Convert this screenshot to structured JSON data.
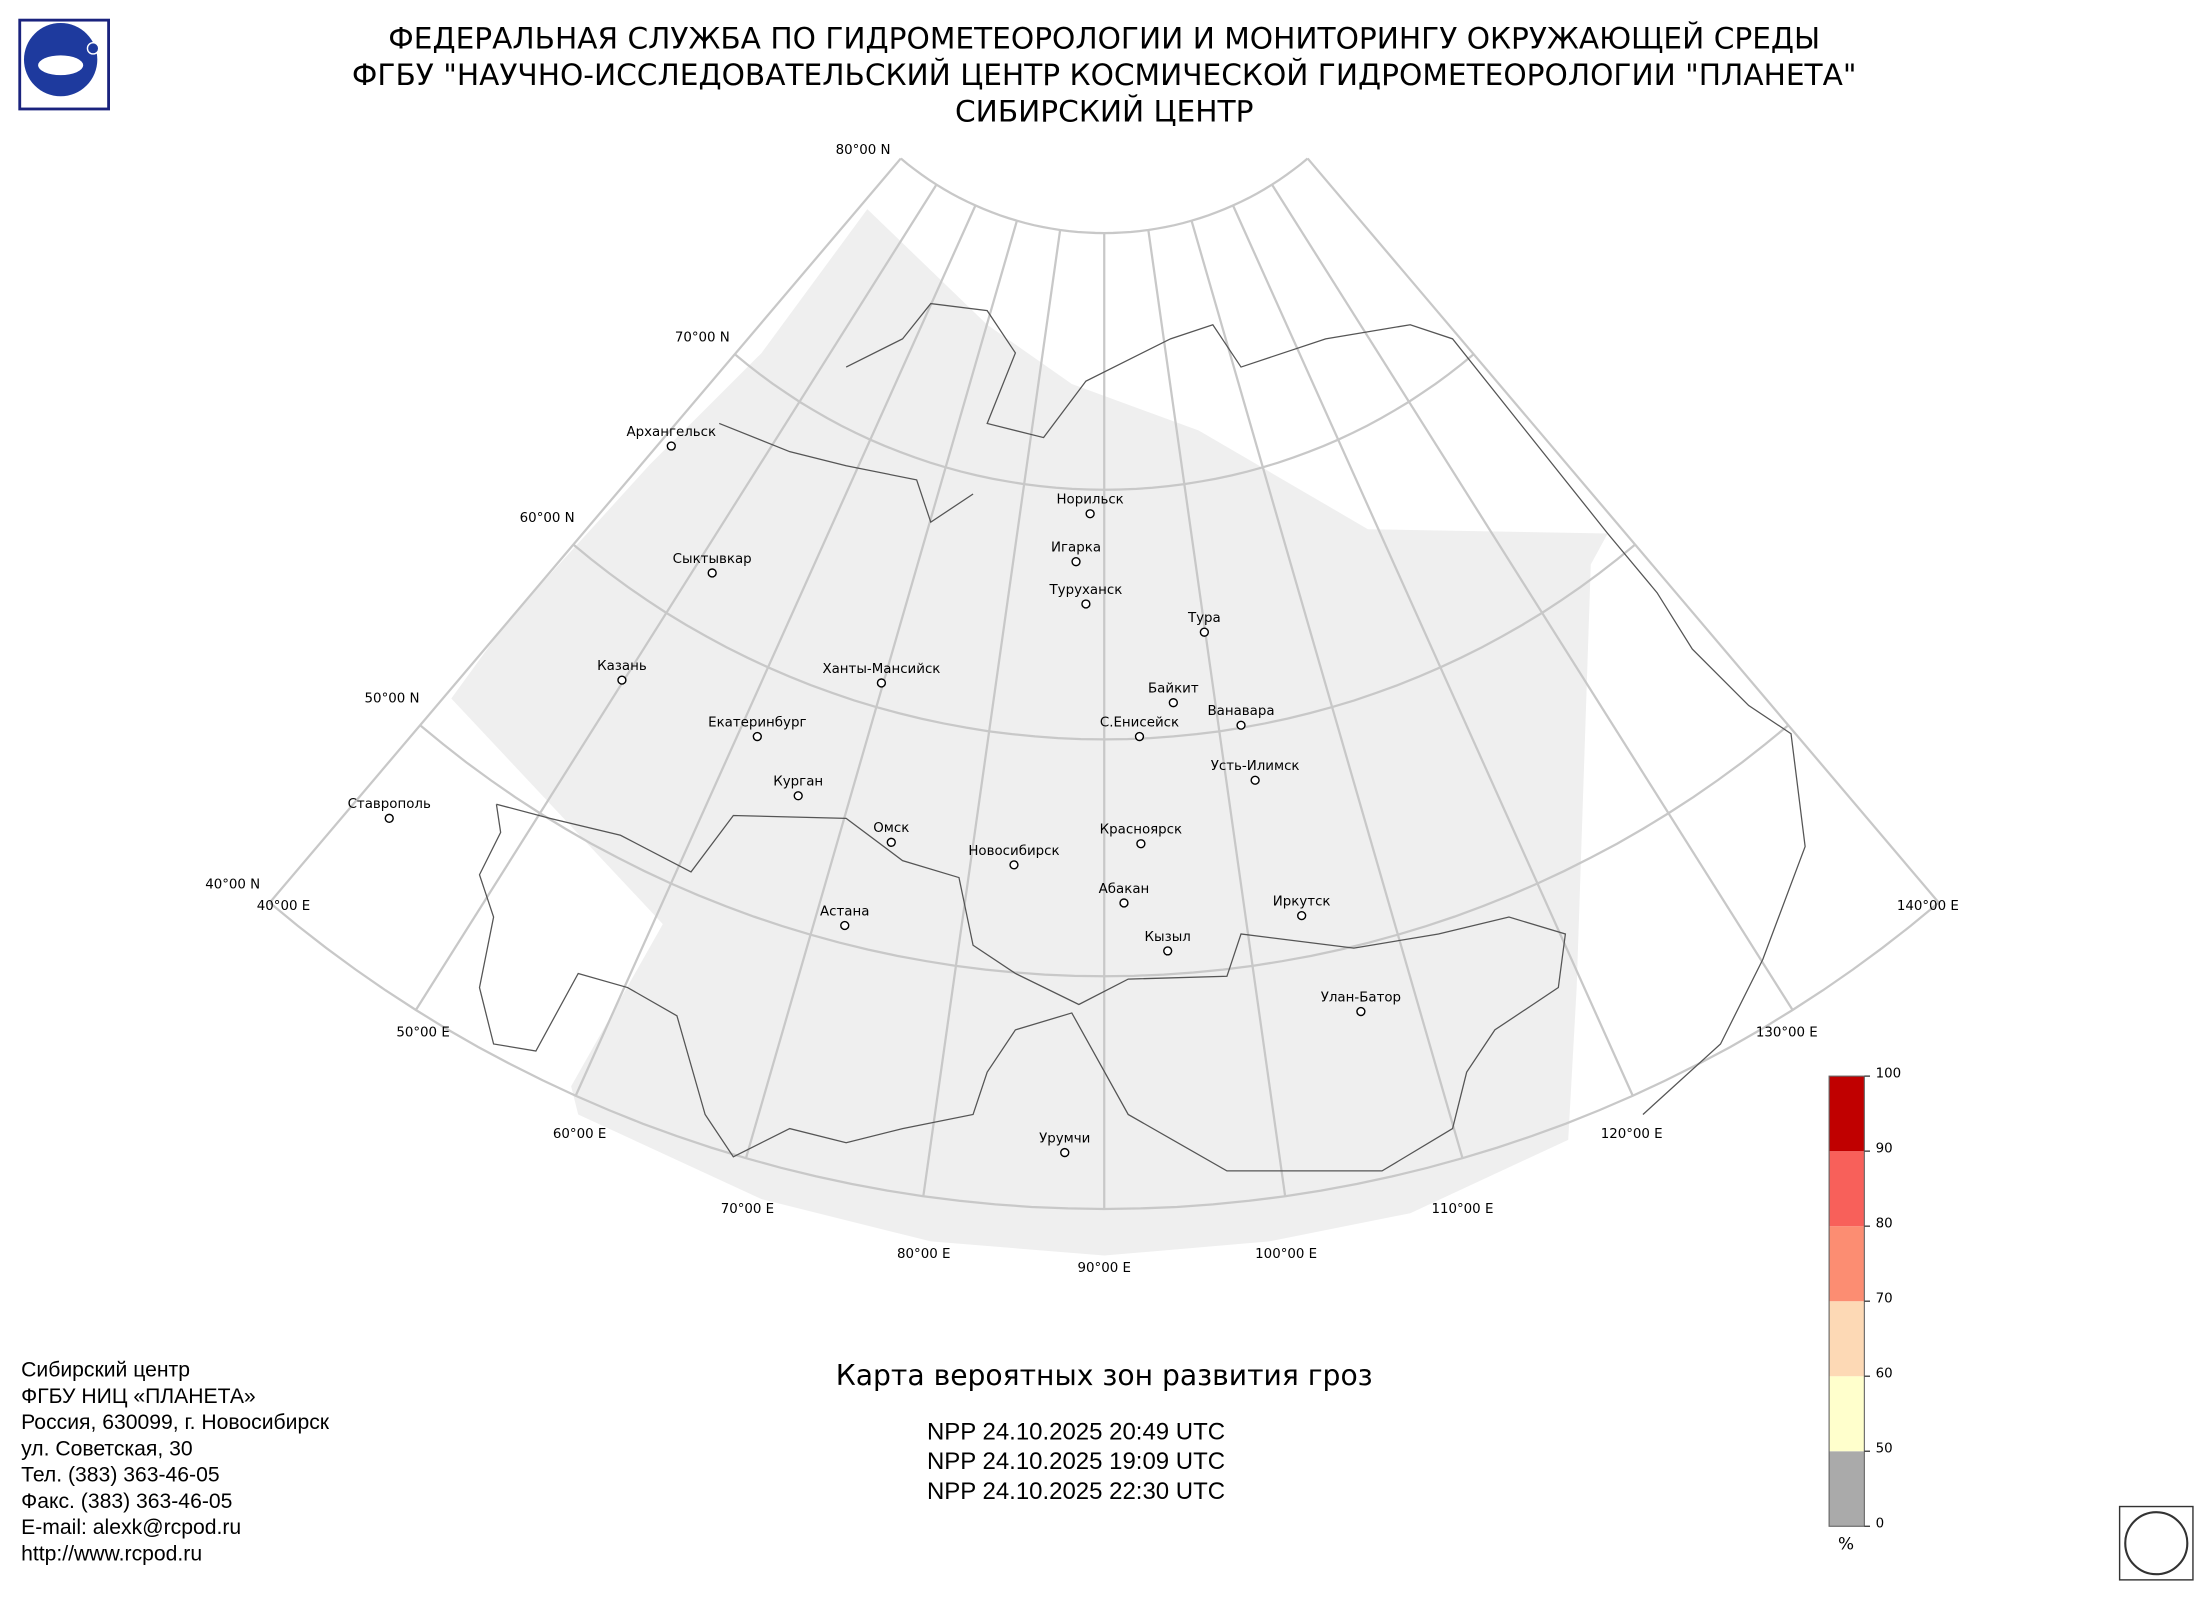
{
  "header": {
    "lines": [
      "ФЕДЕРАЛЬНАЯ СЛУЖБА ПО ГИДРОМЕТЕОРОЛОГИИ И МОНИТОРИНГУ ОКРУЖАЮЩЕЙ СРЕДЫ",
      "ФГБУ \"НАУЧНО-ИССЛЕДОВАТЕЛЬСКИЙ ЦЕНТР КОСМИЧЕСКОЙ ГИДРОМЕТЕОРОЛОГИИ \"ПЛАНЕТА\"",
      "СИБИРСКИЙ ЦЕНТР"
    ]
  },
  "map": {
    "lat_labels": [
      "80°00 N",
      "70°00 N",
      "60°00 N",
      "50°00 N",
      "40°00 N"
    ],
    "lon_labels": [
      "40°00 E",
      "50°00 E",
      "60°00 E",
      "70°00 E",
      "80°00 E",
      "90°00 E",
      "100°00 E",
      "110°00 E",
      "120°00 E",
      "130°00 E",
      "140°00 E"
    ],
    "cities": [
      "Архангельск",
      "Сыктывкар",
      "Казань",
      "Екатеринбург",
      "Курган",
      "Омск",
      "Ханты-Мансийск",
      "Новосибирск",
      "Астана",
      "Норильск",
      "Игарка",
      "Туруханск",
      "Тура",
      "Байкит",
      "Ванавара",
      "С.Енисейск",
      "Усть-Илимск",
      "Красноярск",
      "Абакан",
      "Кызыл",
      "Иркутск",
      "Улан-Батор",
      "Урумчи",
      "Ставрополь"
    ]
  },
  "title": "Карта вероятных зон развития гроз",
  "passes": [
    "NPP 24.10.2025  20:49 UTC",
    "NPP 24.10.2025  19:09 UTC",
    "NPP 24.10.2025  22:30 UTC"
  ],
  "contacts": [
    "Сибирский центр",
    "ФГБУ НИЦ «ПЛАНЕТА»",
    "Россия, 630099, г. Новосибирск",
    "ул. Советская, 30",
    "Тел. (383) 363-46-05",
    "Факс. (383) 363-46-05",
    "E-mail: alexk@rcpod.ru",
    "http://www.rcpod.ru"
  ],
  "legend": {
    "ticks": [
      0,
      50,
      60,
      70,
      80,
      90,
      100
    ],
    "colors": [
      "#aaaaaa",
      "#ffffcc",
      "#fdd9b5",
      "#fc8d72",
      "#f8605a",
      "#c00000"
    ],
    "unit": "%"
  }
}
